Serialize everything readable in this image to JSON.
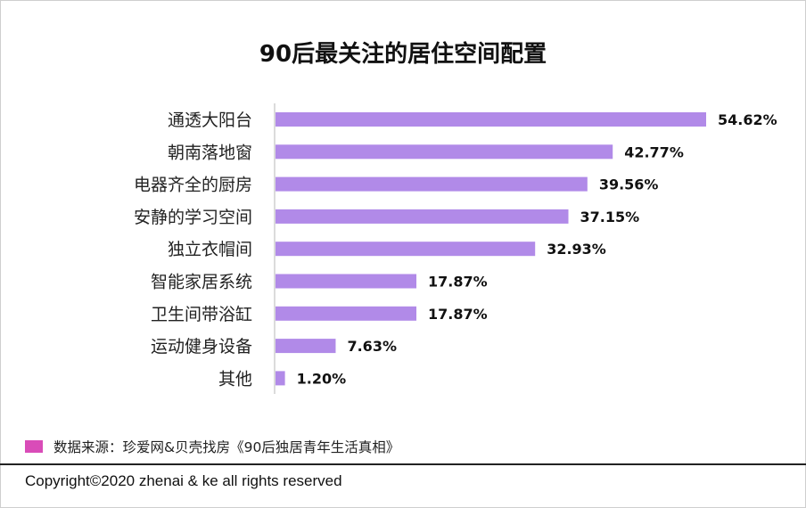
{
  "chart_data": {
    "type": "bar",
    "orientation": "horizontal",
    "title": "90后最关注的居住空间配置",
    "categories": [
      "通透大阳台",
      "朝南落地窗",
      "电器齐全的厨房",
      "安静的学习空间",
      "独立衣帽间",
      "智能家居系统",
      "卫生间带浴缸",
      "运动健身设备",
      "其他"
    ],
    "values": [
      54.62,
      42.77,
      39.56,
      37.15,
      32.93,
      17.87,
      17.87,
      7.63,
      1.2
    ],
    "value_labels": [
      "54.62%",
      "42.77%",
      "39.56%",
      "37.15%",
      "32.93%",
      "17.87%",
      "17.87%",
      "7.63%",
      "1.20%"
    ],
    "unit": "%",
    "bar_color": "#b18ae8",
    "xlabel": "",
    "ylabel": "",
    "xlim": [
      0,
      60
    ]
  },
  "source": {
    "text": "数据来源：珍爱网&贝壳找房《90后独居青年生活真相》",
    "swatch_color": "#d94cb8"
  },
  "footer": {
    "copyright": "Copyright©2020 zhenai & ke all rights reserved"
  }
}
